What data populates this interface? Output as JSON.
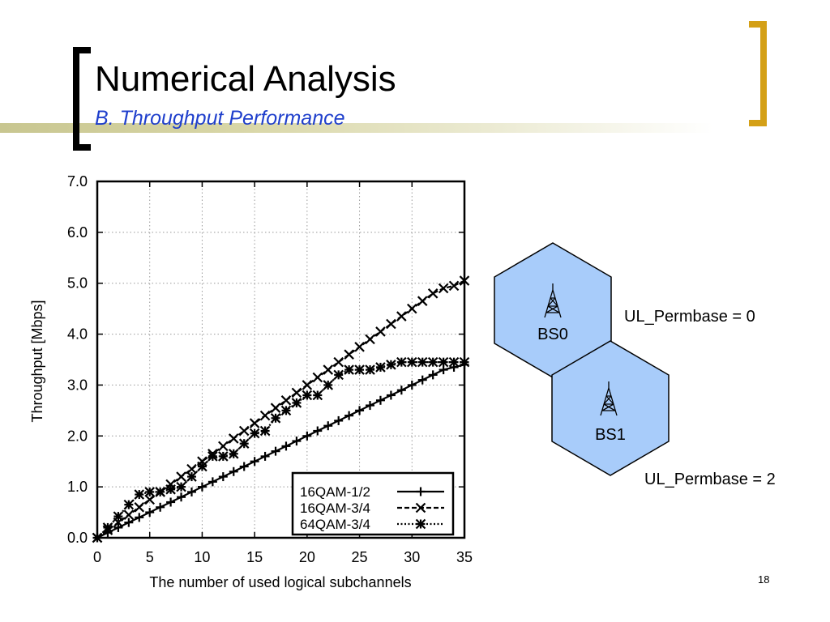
{
  "slide": {
    "title": "Numerical Analysis",
    "subtitle": "B. Throughput Performance",
    "page_number": "18"
  },
  "diagram": {
    "cells": [
      {
        "label": "BS0",
        "permbase_label": "UL_Permbase = 0"
      },
      {
        "label": "BS1",
        "permbase_label": "UL_Permbase = 2"
      }
    ],
    "cell_color": "#a8ccfa"
  },
  "chart_data": {
    "type": "line",
    "xlabel": "The number of used logical subchannels",
    "ylabel": "Throughput [Mbps]",
    "xlim": [
      0,
      35
    ],
    "ylim": [
      0,
      7
    ],
    "x_ticks": [
      "0",
      "5",
      "10",
      "15",
      "20",
      "25",
      "30",
      "35"
    ],
    "y_ticks": [
      "0.0",
      "1.0",
      "2.0",
      "3.0",
      "4.0",
      "5.0",
      "6.0",
      "7.0"
    ],
    "grid": true,
    "legend_position": "bottom-right",
    "x": [
      0,
      1,
      2,
      3,
      4,
      5,
      6,
      7,
      8,
      9,
      10,
      11,
      12,
      13,
      14,
      15,
      16,
      17,
      18,
      19,
      20,
      21,
      22,
      23,
      24,
      25,
      26,
      27,
      28,
      29,
      30,
      31,
      32,
      33,
      34,
      35
    ],
    "series": [
      {
        "name": "16QAM-1/2",
        "marker": "plus",
        "line": "solid",
        "values": [
          0,
          0.1,
          0.2,
          0.3,
          0.4,
          0.5,
          0.6,
          0.7,
          0.8,
          0.9,
          1.0,
          1.1,
          1.2,
          1.3,
          1.4,
          1.5,
          1.6,
          1.7,
          1.8,
          1.9,
          2.0,
          2.1,
          2.2,
          2.3,
          2.4,
          2.5,
          2.6,
          2.7,
          2.8,
          2.9,
          3.0,
          3.1,
          3.2,
          3.3,
          3.35,
          3.4
        ]
      },
      {
        "name": "16QAM-3/4",
        "marker": "cross",
        "line": "dashed",
        "values": [
          0,
          0.15,
          0.3,
          0.45,
          0.6,
          0.75,
          0.9,
          1.05,
          1.2,
          1.35,
          1.5,
          1.65,
          1.8,
          1.95,
          2.1,
          2.25,
          2.4,
          2.55,
          2.7,
          2.85,
          3.0,
          3.15,
          3.3,
          3.45,
          3.6,
          3.75,
          3.9,
          4.05,
          4.2,
          4.35,
          4.5,
          4.65,
          4.8,
          4.9,
          4.95,
          5.05
        ]
      },
      {
        "name": "64QAM-3/4",
        "marker": "star",
        "line": "dotted",
        "values": [
          0,
          0.2,
          0.42,
          0.65,
          0.85,
          0.9,
          0.9,
          0.95,
          1.0,
          1.2,
          1.4,
          1.6,
          1.6,
          1.65,
          1.85,
          2.05,
          2.1,
          2.35,
          2.5,
          2.65,
          2.8,
          2.8,
          3.0,
          3.2,
          3.3,
          3.3,
          3.3,
          3.35,
          3.4,
          3.45,
          3.45,
          3.45,
          3.45,
          3.45,
          3.45,
          3.45
        ]
      }
    ]
  }
}
